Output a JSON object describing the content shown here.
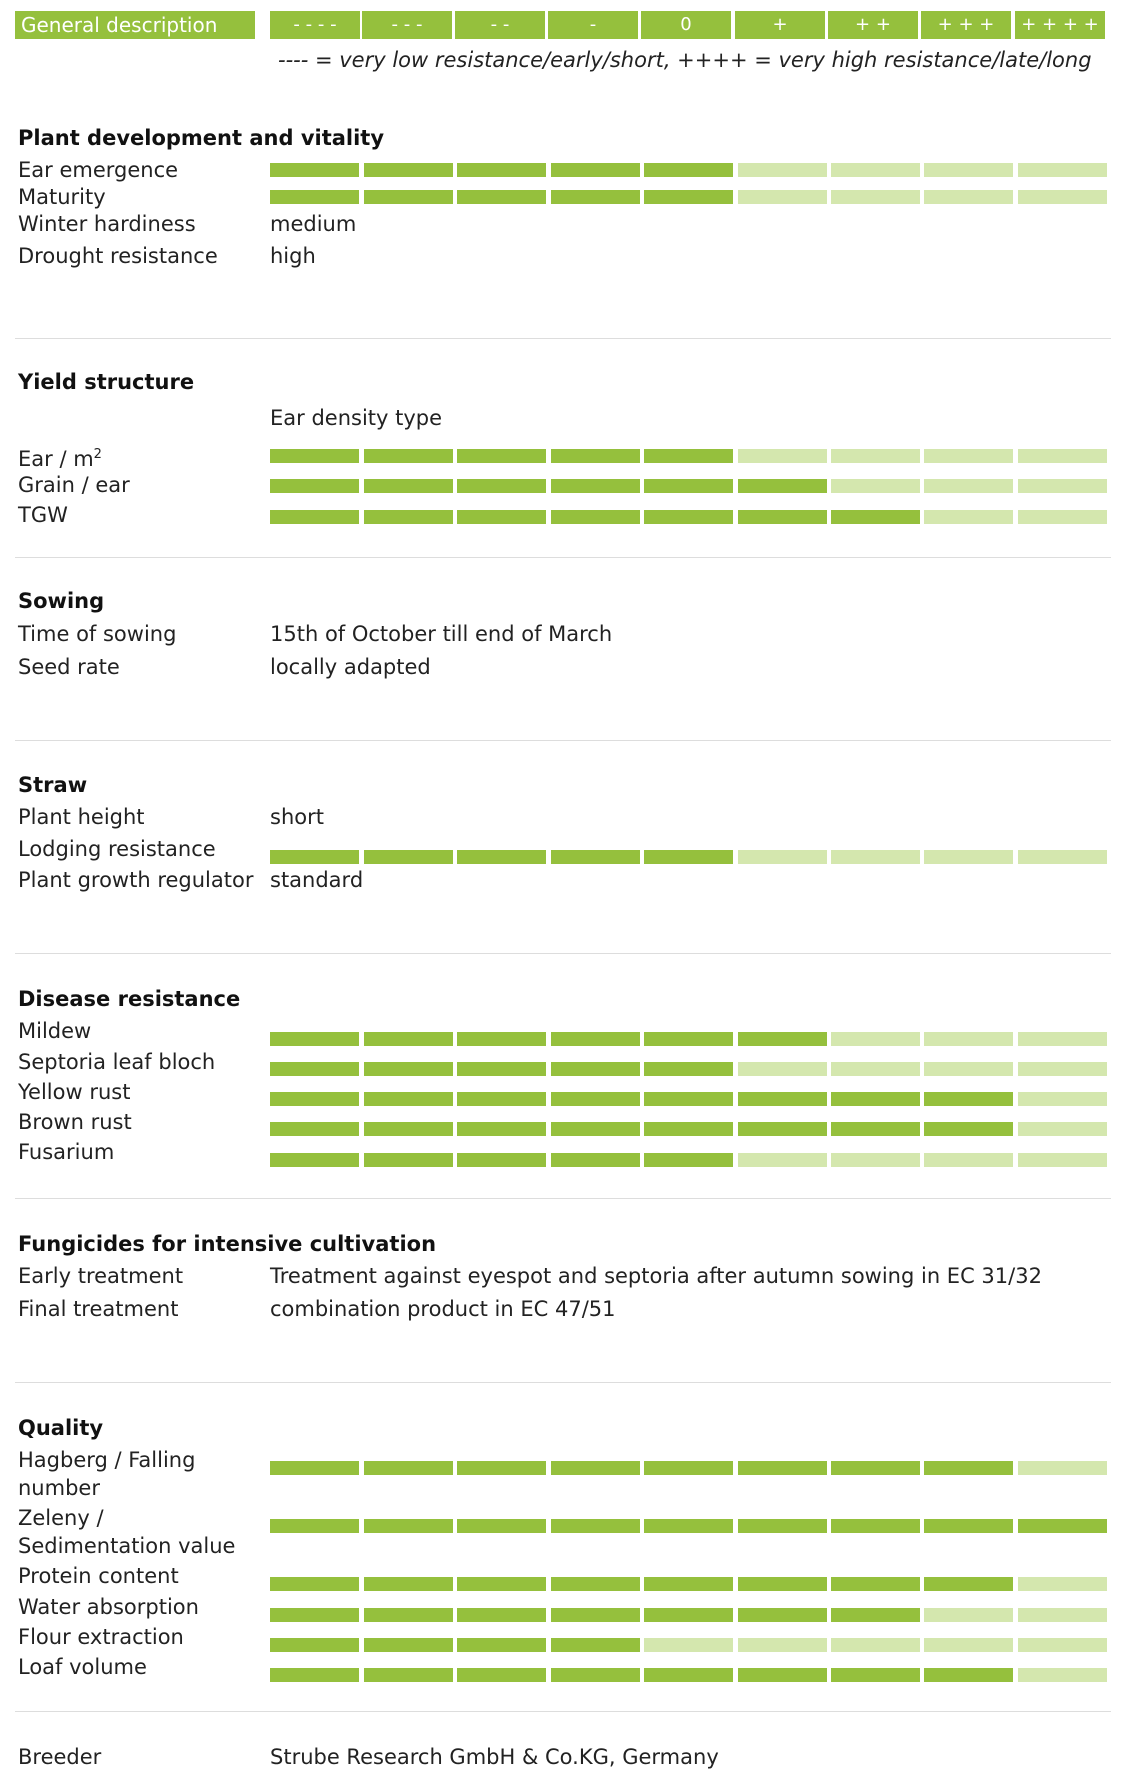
{
  "header": {
    "title": "General description",
    "scale": [
      "- - - -",
      "- - -",
      "- -",
      "-",
      "0",
      "+",
      "+ +",
      "+ + +",
      "+ + + +"
    ],
    "legend": "---- = very low resistance/early/short, ++++ = very high resistance/late/long"
  },
  "sections": [
    {
      "title": "Plant development and vitality",
      "rows": [
        {
          "label": "Ear emergence",
          "rating": 5
        },
        {
          "label": "Maturity",
          "rating": 5
        },
        {
          "label": "Winter hardiness",
          "value": "medium"
        },
        {
          "label": "Drought resistance",
          "value": "high"
        }
      ]
    },
    {
      "title": "Yield structure",
      "rows": [
        {
          "label": "",
          "value": "Ear density type"
        },
        {
          "label": "Ear / m",
          "sup": "2",
          "rating": 5
        },
        {
          "label": "Grain / ear",
          "rating": 6
        },
        {
          "label": "TGW",
          "rating": 7
        }
      ]
    },
    {
      "title": "Sowing",
      "rows": [
        {
          "label": "Time of sowing",
          "value": "15th of October till end of March"
        },
        {
          "label": "Seed rate",
          "value": "locally adapted"
        }
      ]
    },
    {
      "title": "Straw",
      "rows": [
        {
          "label": "Plant height",
          "value": "short"
        },
        {
          "label": "Lodging resistance",
          "rating": 5
        },
        {
          "label": "Plant growth regulator",
          "value": "standard"
        }
      ]
    },
    {
      "title": "Disease resistance",
      "rows": [
        {
          "label": "Mildew",
          "rating": 6
        },
        {
          "label": "Septoria leaf bloch",
          "rating": 5
        },
        {
          "label": "Yellow rust",
          "rating": 8
        },
        {
          "label": "Brown rust",
          "rating": 8
        },
        {
          "label": "Fusarium",
          "rating": 5
        }
      ]
    },
    {
      "title": "Fungicides for intensive cultivation",
      "rows": [
        {
          "label": "Early treatment",
          "value": "Treatment against eyespot and septoria after autumn sowing in EC 31/32"
        },
        {
          "label": "Final treatment",
          "value": "combination product in EC 47/51"
        }
      ]
    },
    {
      "title": "Quality",
      "rows": [
        {
          "label": "Hagberg / Falling number",
          "rating": 8
        },
        {
          "label": "Zeleny / Sedimentation value",
          "rating": 9
        },
        {
          "label": "Protein content",
          "rating": 8
        },
        {
          "label": "Water absorption",
          "rating": 7
        },
        {
          "label": "Flour extraction",
          "rating": 4
        },
        {
          "label": "Loaf volume",
          "rating": 8
        }
      ]
    },
    {
      "title": "",
      "rows": [
        {
          "label": "Breeder",
          "value": "Strube Research GmbH & Co.KG, Germany"
        }
      ]
    }
  ],
  "colors": {
    "filled": "#95c03d",
    "empty": "#d4e7ae",
    "separator": "#dddddd"
  }
}
